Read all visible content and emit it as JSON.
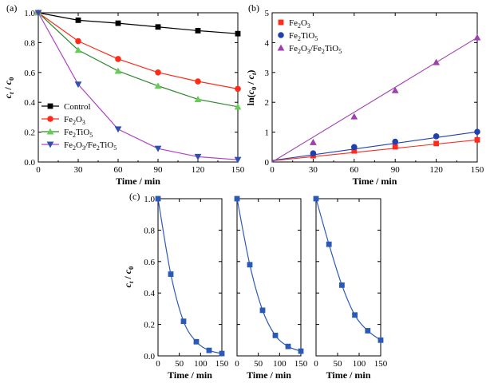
{
  "figure": {
    "panel_labels": [
      "(a)",
      "(b)",
      "(c)"
    ]
  },
  "chart_data": [
    {
      "id": "a",
      "type": "line",
      "panel_label": "(a)",
      "xlabel": "Time / min",
      "ylabel_parts": [
        {
          "t": "c",
          "style": "italic"
        },
        {
          "t": "t",
          "style": "sub-italic"
        },
        {
          "t": " / ",
          "style": "normal"
        },
        {
          "t": "c",
          "style": "italic"
        },
        {
          "t": "0",
          "style": "sub"
        }
      ],
      "xlim": [
        0,
        150
      ],
      "ylim": [
        0,
        1.0
      ],
      "xticks": [
        0,
        30,
        60,
        90,
        120,
        150
      ],
      "yticks": [
        0.0,
        0.2,
        0.4,
        0.6,
        0.8,
        1.0
      ],
      "ytick_labels": [
        "0.0",
        "0.2",
        "0.4",
        "0.6",
        "0.8",
        "1.0"
      ],
      "legend_position": "bottom-left",
      "x": [
        0,
        30,
        60,
        90,
        120,
        150
      ],
      "series": [
        {
          "name": "Control",
          "name_parts": [
            {
              "t": "Control",
              "style": "normal"
            }
          ],
          "color": "#000000",
          "marker": "square",
          "values": [
            1.0,
            0.95,
            0.93,
            0.905,
            0.88,
            0.86
          ]
        },
        {
          "name": "Fe2O3",
          "name_parts": [
            {
              "t": "Fe",
              "style": "normal"
            },
            {
              "t": "2",
              "style": "sub"
            },
            {
              "t": "O",
              "style": "normal"
            },
            {
              "t": "3",
              "style": "sub"
            }
          ],
          "color": "#ff2a1a",
          "marker": "circle",
          "values": [
            1.0,
            0.81,
            0.69,
            0.6,
            0.54,
            0.49
          ]
        },
        {
          "name": "Fe2TiO5",
          "name_parts": [
            {
              "t": "Fe",
              "style": "normal"
            },
            {
              "t": "2",
              "style": "sub"
            },
            {
              "t": "TiO",
              "style": "normal"
            },
            {
              "t": "5",
              "style": "sub"
            }
          ],
          "color": "#2f8a2f",
          "marker_color": "#66cc55",
          "marker": "triangle-up",
          "values": [
            1.0,
            0.75,
            0.61,
            0.51,
            0.42,
            0.37
          ]
        },
        {
          "name": "Fe2O3/Fe2TiO5",
          "name_parts": [
            {
              "t": "Fe",
              "style": "normal"
            },
            {
              "t": "2",
              "style": "sub"
            },
            {
              "t": "O",
              "style": "normal"
            },
            {
              "t": "3",
              "style": "sub"
            },
            {
              "t": "/Fe",
              "style": "normal"
            },
            {
              "t": "2",
              "style": "sub"
            },
            {
              "t": "TiO",
              "style": "normal"
            },
            {
              "t": "5",
              "style": "sub"
            }
          ],
          "color": "#b040c8",
          "marker_color": "#3050b0",
          "marker": "triangle-down",
          "values": [
            1.0,
            0.52,
            0.22,
            0.09,
            0.035,
            0.015
          ]
        }
      ]
    },
    {
      "id": "b",
      "type": "scatter",
      "panel_label": "(b)",
      "xlabel": "Time / min",
      "ylabel_parts": [
        {
          "t": "ln(",
          "style": "normal"
        },
        {
          "t": "c",
          "style": "italic"
        },
        {
          "t": "0",
          "style": "sub"
        },
        {
          "t": " / ",
          "style": "normal"
        },
        {
          "t": "c",
          "style": "italic"
        },
        {
          "t": "t",
          "style": "sub-italic"
        },
        {
          "t": ")",
          "style": "normal"
        }
      ],
      "xlim": [
        0,
        150
      ],
      "ylim": [
        0,
        5
      ],
      "xticks": [
        0,
        30,
        60,
        90,
        120,
        150
      ],
      "yticks": [
        0,
        1,
        2,
        3,
        4,
        5
      ],
      "ytick_labels": [
        "0",
        "1",
        "2",
        "3",
        "4",
        "5"
      ],
      "legend_position": "top-left",
      "x": [
        30,
        60,
        90,
        120,
        150
      ],
      "series": [
        {
          "name": "Fe2O3",
          "name_parts": [
            {
              "t": "Fe",
              "style": "normal"
            },
            {
              "t": "2",
              "style": "sub"
            },
            {
              "t": "O",
              "style": "normal"
            },
            {
              "t": "3",
              "style": "sub"
            }
          ],
          "color": "#ff2a1a",
          "marker": "square",
          "values": [
            0.21,
            0.37,
            0.51,
            0.62,
            0.74
          ],
          "fit": [
            [
              0,
              0.04
            ],
            [
              150,
              0.74
            ]
          ]
        },
        {
          "name": "Fe2TiO5",
          "name_parts": [
            {
              "t": "Fe",
              "style": "normal"
            },
            {
              "t": "2",
              "style": "sub"
            },
            {
              "t": "TiO",
              "style": "normal"
            },
            {
              "t": "5",
              "style": "sub"
            }
          ],
          "color": "#2040b0",
          "marker": "circle",
          "values": [
            0.29,
            0.5,
            0.68,
            0.86,
            1.01
          ],
          "fit": [
            [
              0,
              0.05
            ],
            [
              150,
              1.01
            ]
          ]
        },
        {
          "name": "Fe2O3/Fe2TiO5",
          "name_parts": [
            {
              "t": "Fe",
              "style": "normal"
            },
            {
              "t": "2",
              "style": "sub"
            },
            {
              "t": "O",
              "style": "normal"
            },
            {
              "t": "3",
              "style": "sub"
            },
            {
              "t": "/Fe",
              "style": "normal"
            },
            {
              "t": "2",
              "style": "sub"
            },
            {
              "t": "TiO",
              "style": "normal"
            },
            {
              "t": "5",
              "style": "sub"
            }
          ],
          "color": "#a040b0",
          "marker": "triangle-up",
          "values": [
            0.66,
            1.52,
            2.4,
            3.34,
            4.17
          ],
          "fit": [
            [
              0,
              0.0
            ],
            [
              150,
              4.17
            ]
          ]
        }
      ]
    },
    {
      "id": "c1",
      "type": "line",
      "panel_label": "(c)",
      "xlabel": "Time / min",
      "ylabel_parts": [
        {
          "t": "c",
          "style": "italic"
        },
        {
          "t": "t",
          "style": "sub-italic"
        },
        {
          "t": " / ",
          "style": "normal"
        },
        {
          "t": "c",
          "style": "italic"
        },
        {
          "t": "0",
          "style": "sub"
        }
      ],
      "xlim": [
        0,
        150
      ],
      "ylim": [
        0,
        1.0
      ],
      "xticks": [
        0,
        50,
        100,
        150
      ],
      "yticks": [
        0.0,
        0.2,
        0.4,
        0.6,
        0.8,
        1.0
      ],
      "ytick_labels": [
        "0.0",
        "0.2",
        "0.4",
        "0.6",
        "0.8",
        "1.0"
      ],
      "x": [
        0,
        30,
        60,
        90,
        120,
        150
      ],
      "series": [
        {
          "color": "#2a5ab8",
          "marker": "square",
          "values": [
            1.0,
            0.52,
            0.22,
            0.09,
            0.035,
            0.015
          ]
        }
      ]
    },
    {
      "id": "c2",
      "type": "line",
      "xlabel": "Time / min",
      "xlim": [
        0,
        150
      ],
      "ylim": [
        0,
        1.0
      ],
      "xticks": [
        0,
        50,
        100,
        150
      ],
      "yticks": [
        0.0,
        0.2,
        0.4,
        0.6,
        0.8,
        1.0
      ],
      "x": [
        0,
        30,
        60,
        90,
        120,
        150
      ],
      "series": [
        {
          "color": "#2a5ab8",
          "marker": "square",
          "values": [
            1.0,
            0.58,
            0.29,
            0.13,
            0.06,
            0.03
          ]
        }
      ]
    },
    {
      "id": "c3",
      "type": "line",
      "xlabel": "Time / min",
      "xlim": [
        0,
        150
      ],
      "ylim": [
        0,
        1.0
      ],
      "xticks": [
        0,
        50,
        100,
        150
      ],
      "yticks": [
        0.0,
        0.2,
        0.4,
        0.6,
        0.8,
        1.0
      ],
      "x": [
        0,
        30,
        60,
        90,
        120,
        150
      ],
      "series": [
        {
          "color": "#2a5ab8",
          "marker": "square",
          "values": [
            1.0,
            0.71,
            0.45,
            0.26,
            0.16,
            0.1
          ]
        }
      ]
    }
  ]
}
